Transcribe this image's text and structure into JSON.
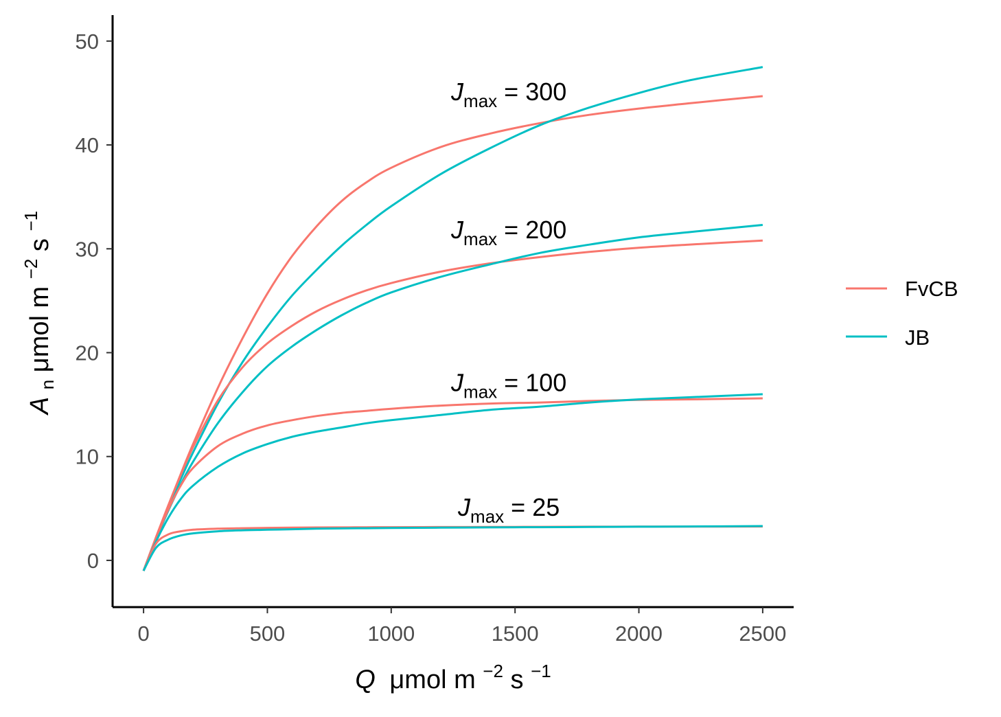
{
  "chart_data": {
    "type": "line",
    "xlabel": {
      "var": "Q",
      "unit_prefix": "μmol m",
      "exp1": "−2",
      "mid": " s",
      "exp2": "−1"
    },
    "ylabel": {
      "var": "A",
      "sub": "n",
      "unit_prefix": " μmol m",
      "exp1": "−2",
      "mid": " s",
      "exp2": "−1"
    },
    "xlim": [
      -125,
      2625
    ],
    "ylim": [
      -4.5,
      52.5
    ],
    "x_ticks": [
      0,
      500,
      1000,
      1500,
      2000,
      2500
    ],
    "y_ticks": [
      0,
      10,
      20,
      30,
      40,
      50
    ],
    "grid": false,
    "legend_position": "right",
    "legend": [
      {
        "name": "FvCB",
        "color": "#F8766D"
      },
      {
        "name": "JB",
        "color": "#00BFC4"
      }
    ],
    "annotations": [
      {
        "var": "J",
        "sub": "max",
        "text": " = 300",
        "x": 1475,
        "y": 44.3
      },
      {
        "var": "J",
        "sub": "max",
        "text": " = 200",
        "x": 1475,
        "y": 31.0
      },
      {
        "var": "J",
        "sub": "max",
        "text": " = 100",
        "x": 1475,
        "y": 16.3
      },
      {
        "var": "J",
        "sub": "max",
        "text": " = 25",
        "x": 1475,
        "y": 4.3
      }
    ],
    "x": [
      0,
      50,
      100,
      150,
      200,
      300,
      400,
      500,
      600,
      700,
      800,
      900,
      1000,
      1200,
      1400,
      1600,
      1800,
      2000,
      2200,
      2500
    ],
    "series": [
      {
        "name": "FvCB",
        "jmax": 300,
        "color": "#F8766D",
        "values": [
          -1.0,
          2.2,
          5.3,
          8.3,
          11.2,
          16.6,
          21.4,
          25.7,
          29.3,
          32.2,
          34.6,
          36.4,
          37.8,
          39.8,
          41.1,
          42.1,
          42.9,
          43.5,
          44.0,
          44.7
        ]
      },
      {
        "name": "JB",
        "jmax": 300,
        "color": "#00BFC4",
        "values": [
          -1.0,
          2.1,
          5.0,
          7.8,
          10.4,
          15.1,
          19.1,
          22.5,
          25.5,
          28.0,
          30.3,
          32.3,
          34.1,
          37.2,
          39.7,
          41.9,
          43.6,
          45.0,
          46.2,
          47.5
        ]
      },
      {
        "name": "FvCB",
        "jmax": 200,
        "color": "#F8766D",
        "values": [
          -1.0,
          2.2,
          5.3,
          8.2,
          10.9,
          15.4,
          18.6,
          20.9,
          22.6,
          24.0,
          25.1,
          26.0,
          26.7,
          27.8,
          28.6,
          29.2,
          29.7,
          30.1,
          30.4,
          30.8
        ]
      },
      {
        "name": "JB",
        "jmax": 200,
        "color": "#00BFC4",
        "values": [
          -1.0,
          2.0,
          4.8,
          7.3,
          9.5,
          13.2,
          16.2,
          18.7,
          20.6,
          22.2,
          23.6,
          24.8,
          25.8,
          27.3,
          28.5,
          29.6,
          30.4,
          31.1,
          31.6,
          32.3
        ]
      },
      {
        "name": "FvCB",
        "jmax": 100,
        "color": "#F8766D",
        "values": [
          -1.0,
          2.1,
          4.9,
          7.2,
          8.9,
          11.0,
          12.2,
          13.0,
          13.5,
          13.9,
          14.2,
          14.4,
          14.6,
          14.9,
          15.1,
          15.2,
          15.35,
          15.45,
          15.5,
          15.6
        ]
      },
      {
        "name": "JB",
        "jmax": 100,
        "color": "#00BFC4",
        "values": [
          -1.0,
          1.8,
          4.1,
          5.9,
          7.2,
          9.0,
          10.3,
          11.2,
          11.9,
          12.4,
          12.8,
          13.2,
          13.5,
          14.0,
          14.5,
          14.8,
          15.2,
          15.5,
          15.7,
          16.0
        ]
      },
      {
        "name": "FvCB",
        "jmax": 25,
        "color": "#F8766D",
        "values": [
          -1.0,
          1.6,
          2.5,
          2.8,
          2.95,
          3.05,
          3.1,
          3.13,
          3.15,
          3.17,
          3.18,
          3.19,
          3.2,
          3.21,
          3.22,
          3.23,
          3.24,
          3.25,
          3.25,
          3.26
        ]
      },
      {
        "name": "JB",
        "jmax": 25,
        "color": "#00BFC4",
        "values": [
          -1.0,
          1.2,
          2.0,
          2.4,
          2.6,
          2.8,
          2.9,
          2.95,
          3.0,
          3.05,
          3.08,
          3.1,
          3.12,
          3.15,
          3.18,
          3.2,
          3.22,
          3.24,
          3.26,
          3.3
        ]
      }
    ]
  }
}
